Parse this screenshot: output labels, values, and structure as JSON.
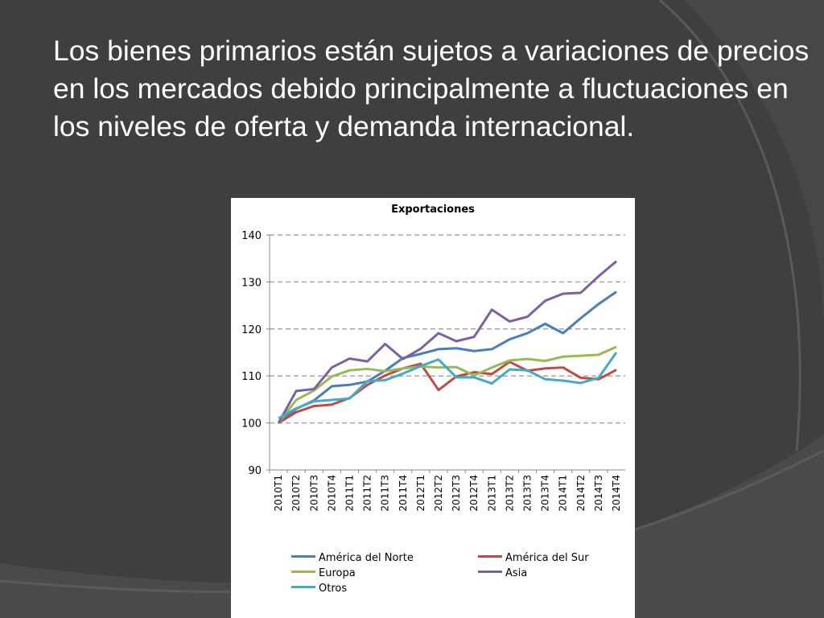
{
  "slide": {
    "text": "Los bienes primarios están sujetos a variaciones de precios en los mercados debido principalmente a fluctuaciones en los niveles de oferta y demanda internacional."
  },
  "colors": {
    "background": "#3f3f3f",
    "text": "#ffffff",
    "grid": "#a6a6a6",
    "america_norte": "#4a7ebb",
    "america_sur": "#be4b48",
    "europa": "#98b954",
    "asia": "#7d60a0",
    "otros": "#46aac5"
  },
  "chart_data": {
    "type": "line",
    "title": "Exportaciones",
    "xlabel": "",
    "ylabel": "",
    "ylim": [
      90,
      140
    ],
    "yticks": [
      "90",
      "100",
      "110",
      "120",
      "130",
      "140"
    ],
    "grid": true,
    "legend_position": "bottom",
    "categories": [
      "2010T1",
      "2010T2",
      "2010T3",
      "2010T4",
      "2011T1",
      "2011T2",
      "2011T3",
      "2011T4",
      "2012T1",
      "2012T2",
      "2012T3",
      "2012T4",
      "2013T1",
      "2013T2",
      "2013T3",
      "2013T4",
      "2014T1",
      "2014T2",
      "2014T3",
      "2014T4"
    ],
    "series": [
      {
        "name": "América del Norte",
        "color": "#4a7ebb",
        "values": [
          100,
          103,
          104.8,
          107.8,
          108.1,
          108.8,
          111.1,
          113.8,
          114.7,
          115.7,
          115.9,
          115.3,
          115.7,
          117.8,
          119.1,
          121.1,
          119.1,
          122.3,
          125.3,
          127.9
        ]
      },
      {
        "name": "América del Sur",
        "color": "#be4b48",
        "values": [
          100,
          102.3,
          103.6,
          103.9,
          105.3,
          108.1,
          110.1,
          111.6,
          112.6,
          107.0,
          109.9,
          110.8,
          110.4,
          113.0,
          111.1,
          111.6,
          111.8,
          109.6,
          109.3,
          111.3
        ]
      },
      {
        "name": "Europa",
        "color": "#98b954",
        "values": [
          100,
          104.9,
          106.9,
          109.9,
          111.2,
          111.5,
          111.0,
          111.6,
          112.0,
          111.8,
          111.9,
          110.1,
          111.8,
          113.3,
          113.6,
          113.2,
          114.1,
          114.3,
          114.5,
          116.2
        ]
      },
      {
        "name": "Asia",
        "color": "#7d60a0",
        "values": [
          100,
          106.8,
          107.2,
          111.8,
          113.7,
          113.1,
          116.8,
          113.6,
          115.8,
          119.1,
          117.4,
          118.3,
          124.1,
          121.6,
          122.6,
          126.0,
          127.5,
          127.7,
          131.2,
          134.4
        ]
      },
      {
        "name": "Otros",
        "color": "#46aac5",
        "values": [
          101,
          103.1,
          104.6,
          104.9,
          105.2,
          108.9,
          109.1,
          110.5,
          112.1,
          113.5,
          109.7,
          109.7,
          108.4,
          111.4,
          111.2,
          109.3,
          109.0,
          108.5,
          109.6,
          115.0
        ]
      }
    ]
  }
}
